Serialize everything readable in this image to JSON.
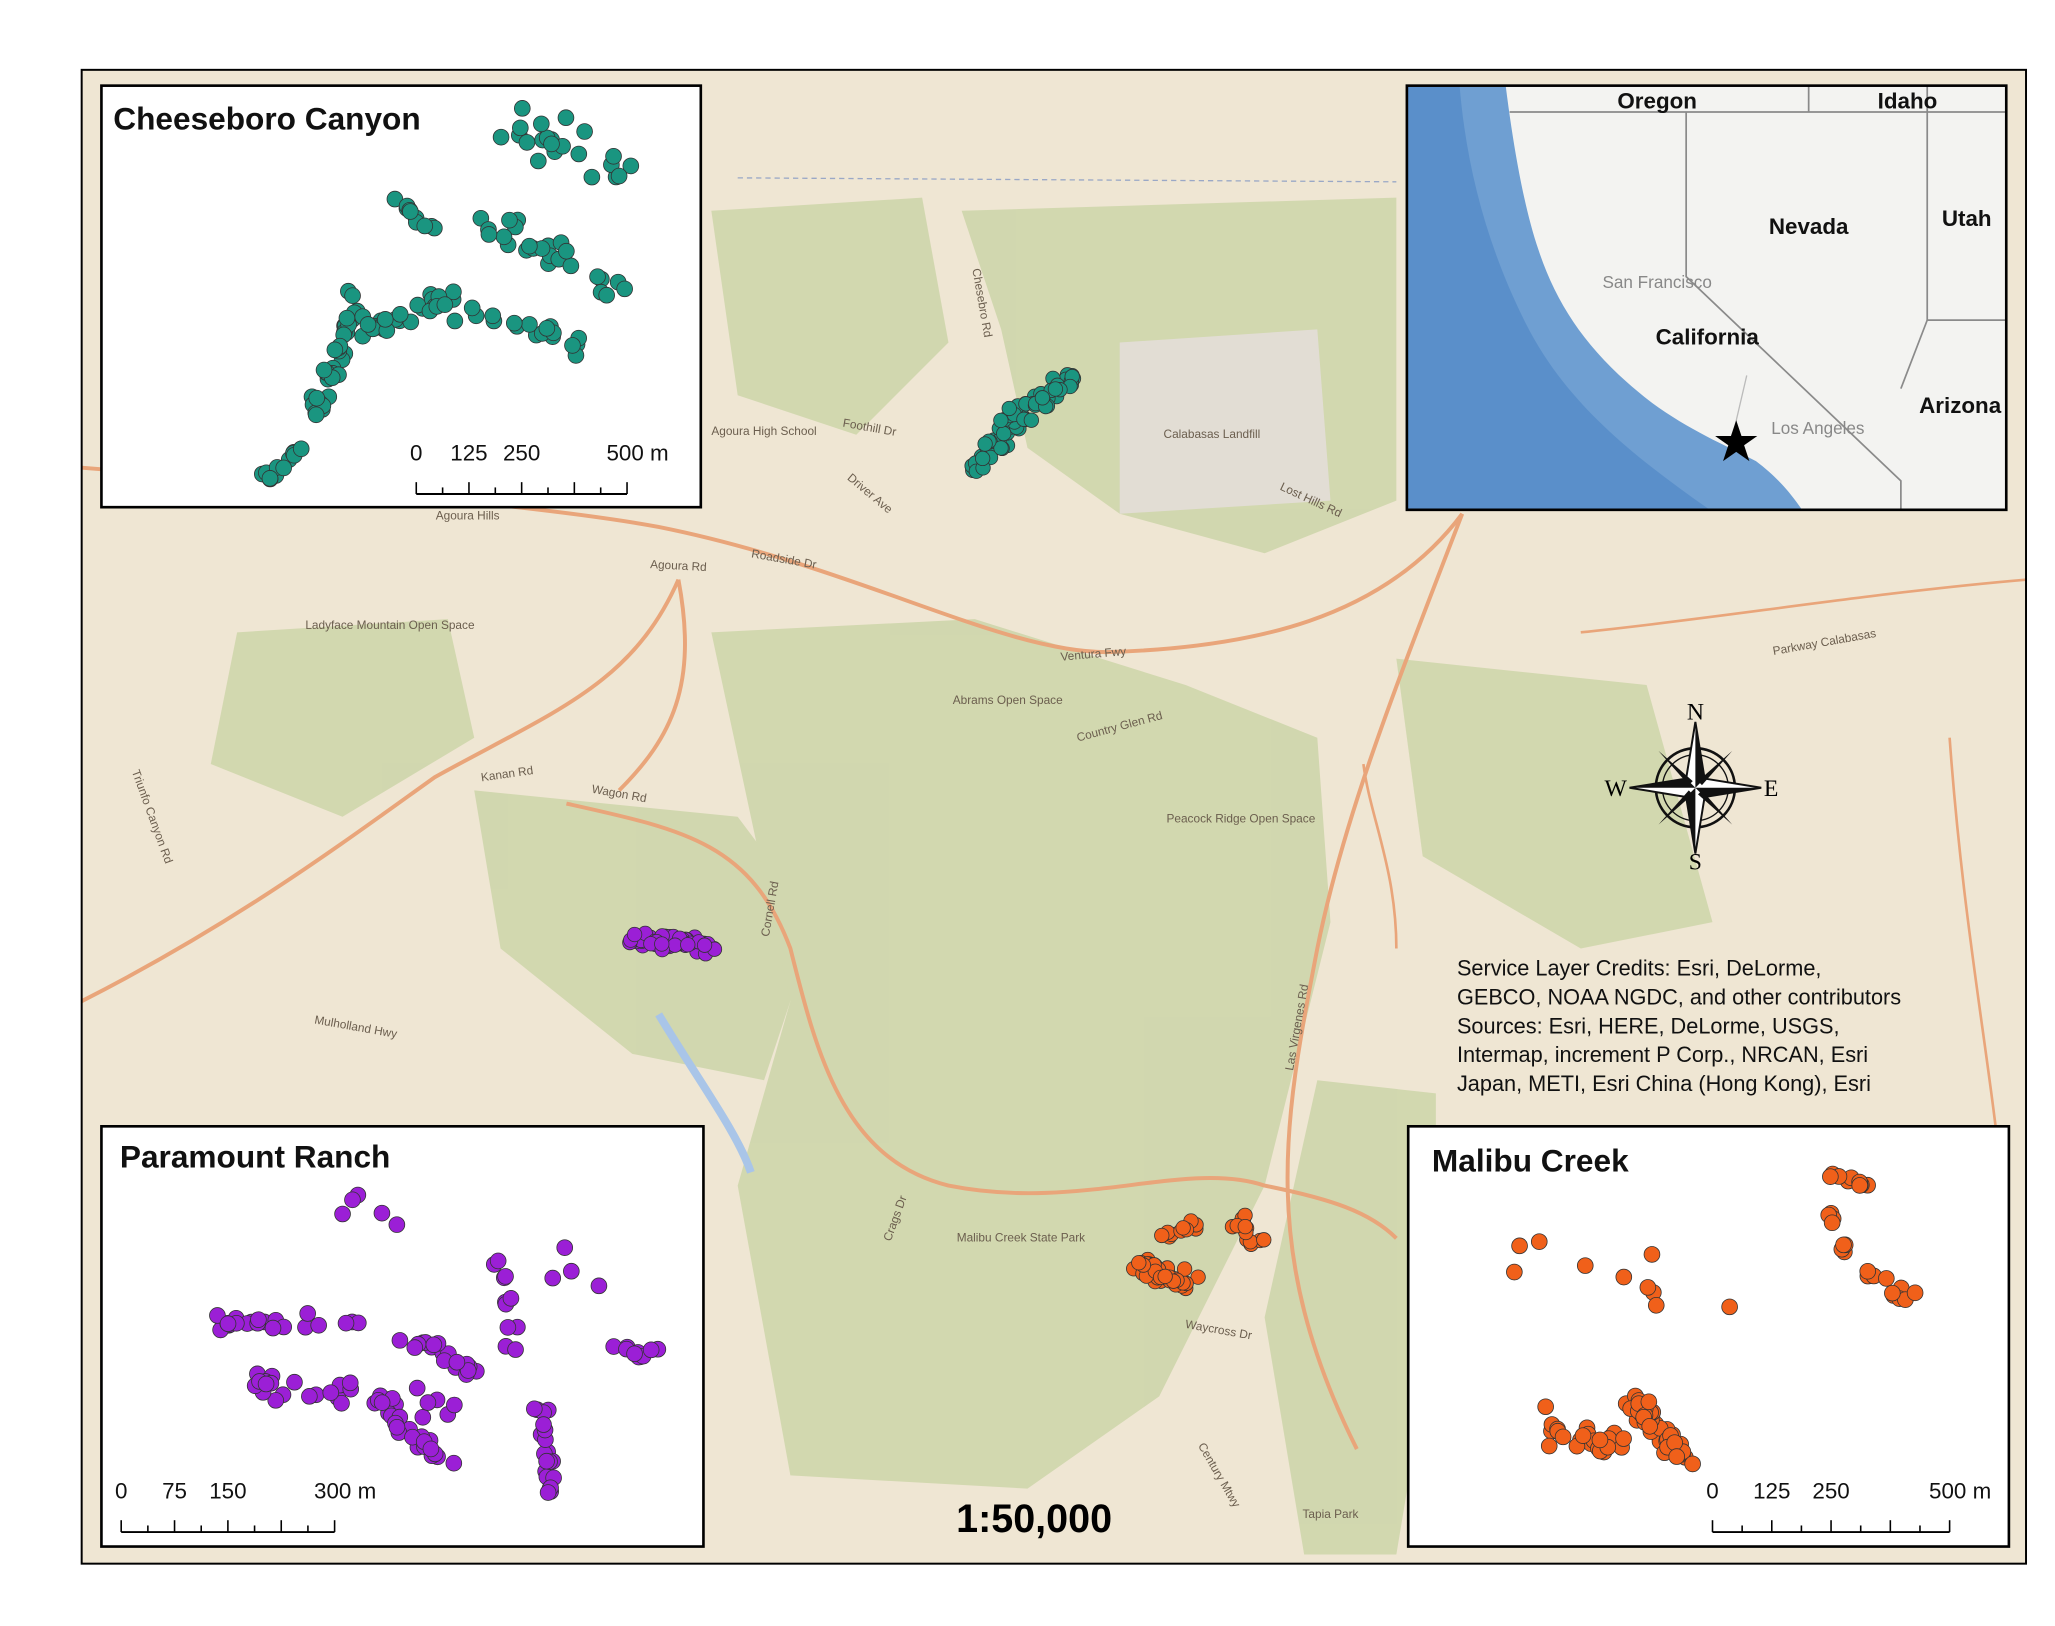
{
  "map": {
    "scale": "1:50,000",
    "credits": [
      "Service Layer Credits: Esri, DeLorme,",
      "GEBCO, NOAA NGDC, and other contributors",
      "Sources: Esri, HERE, DeLorme, USGS,",
      "Intermap, increment P Corp., NRCAN, Esri",
      "Japan, METI, Esri China (Hong Kong), Esri"
    ],
    "compass": {
      "n": "N",
      "e": "E",
      "s": "S",
      "w": "W"
    },
    "place_labels": [
      "Agoura Hills",
      "Ventura Fwy",
      "Agoura Rd",
      "Kanan Rd",
      "Wagon Rd",
      "Cornell Rd",
      "Las Virgenes Rd",
      "Lost Hills Rd",
      "Malibu Creek State Park",
      "Mulholland Hwy",
      "Calabasas Landfill",
      "Ladyface Mountain Open Space",
      "Abrams Open Space",
      "Peacock Ridge Open Space",
      "Country Glen Rd",
      "Driver Ave",
      "Foothill Dr",
      "Chesebro Rd",
      "Parkway Calabasas",
      "Waycross Dr",
      "Century Mtwy",
      "Crags Dr",
      "Triunfo Canyon Rd",
      "Tapia Park",
      "Agoura High School",
      "Roadside Dr"
    ]
  },
  "insets": [
    {
      "title": "Cheeseboro Canyon",
      "color": "#1a9580",
      "scale_labels": [
        "0",
        "125",
        "250",
        "500 m"
      ]
    },
    {
      "title": "Paramount Ranch",
      "color": "#9b1fd6",
      "scale_labels": [
        "0",
        "75",
        "150",
        "300 m"
      ]
    },
    {
      "title": "Malibu Creek",
      "color": "#f0601a",
      "scale_labels": [
        "0",
        "125",
        "250",
        "500 m"
      ]
    }
  ],
  "locator": {
    "labels": [
      "Oregon",
      "Idaho",
      "Nevada",
      "Utah",
      "California",
      "Arizona",
      "San Francisco",
      "Los Angeles"
    ]
  }
}
